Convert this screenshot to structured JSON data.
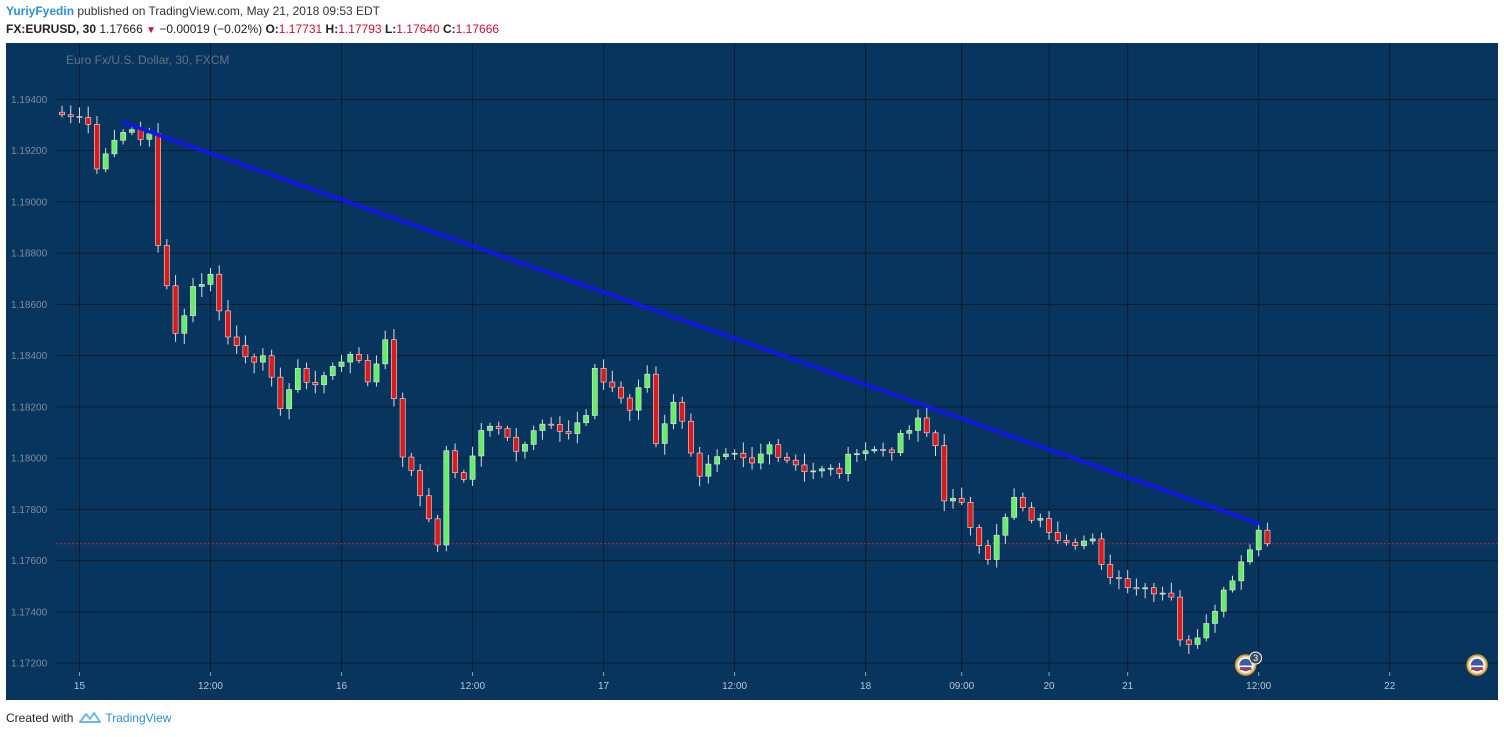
{
  "header": {
    "author": "YuriyFyedin",
    "published_text": "published on TradingView.com, May 21, 2018 09:53 EDT",
    "symbol": "FX:EURUSD, 30",
    "last_price": "1.17666",
    "change_icon": "down-triangle-icon",
    "change": "−0.00019 (−0.02%)",
    "open_label": "O:",
    "open": "1.17731",
    "high_label": "H:",
    "high": "1.17793",
    "low_label": "L:",
    "low": "1.17640",
    "close_label": "C:",
    "close": "1.17666"
  },
  "footer": {
    "created_with": "Created with",
    "brand": "TradingView",
    "logo_icon": "tradingview-logo-icon"
  },
  "chart_data": {
    "type": "candlestick",
    "title": "Euro Fx/U.S. Dollar, 30, FXCM",
    "ylim": [
      1.1705,
      1.1962
    ],
    "xlim": [
      0,
      170
    ],
    "y_ticks": [
      "1.19400",
      "1.19200",
      "1.19000",
      "1.18800",
      "1.18600",
      "1.18400",
      "1.18200",
      "1.18000",
      "1.17800",
      "1.17600",
      "1.17400",
      "1.17200"
    ],
    "x_ticks": [
      {
        "label": "15",
        "x": 2
      },
      {
        "label": "12:00",
        "x": 17
      },
      {
        "label": "16",
        "x": 32
      },
      {
        "label": "12:00",
        "x": 47
      },
      {
        "label": "17",
        "x": 62
      },
      {
        "label": "12:00",
        "x": 77
      },
      {
        "label": "18",
        "x": 92
      },
      {
        "label": "09:00",
        "x": 103
      },
      {
        "label": "20",
        "x": 113
      },
      {
        "label": "21",
        "x": 122
      },
      {
        "label": "12:00",
        "x": 137
      },
      {
        "label": "22",
        "x": 152
      }
    ],
    "price_line": 1.17666,
    "trendline": {
      "x1": 7,
      "y1": 1.1931,
      "x2": 137,
      "y2": 1.17745
    },
    "anchors": [
      [
        0,
        1.1934
      ],
      [
        3,
        1.1932
      ],
      [
        4,
        1.1914
      ],
      [
        7,
        1.1929
      ],
      [
        9,
        1.1924
      ],
      [
        10,
        1.1927
      ],
      [
        11,
        1.1884
      ],
      [
        13,
        1.1848
      ],
      [
        15,
        1.1867
      ],
      [
        17,
        1.1871
      ],
      [
        19,
        1.1847
      ],
      [
        21,
        1.1841
      ],
      [
        23,
        1.1838
      ],
      [
        25,
        1.1821
      ],
      [
        27,
        1.1833
      ],
      [
        29,
        1.1829
      ],
      [
        31,
        1.1835
      ],
      [
        33,
        1.1842
      ],
      [
        35,
        1.183
      ],
      [
        37,
        1.1846
      ],
      [
        39,
        1.1802
      ],
      [
        41,
        1.1786
      ],
      [
        43,
        1.1768
      ],
      [
        44,
        1.1801
      ],
      [
        46,
        1.179
      ],
      [
        48,
        1.1812
      ],
      [
        50,
        1.1812
      ],
      [
        52,
        1.1802
      ],
      [
        54,
        1.1812
      ],
      [
        56,
        1.1815
      ],
      [
        58,
        1.181
      ],
      [
        60,
        1.1816
      ],
      [
        61,
        1.1833
      ],
      [
        63,
        1.1828
      ],
      [
        65,
        1.1819
      ],
      [
        67,
        1.1833
      ],
      [
        68,
        1.1806
      ],
      [
        70,
        1.1823
      ],
      [
        73,
        1.1794
      ],
      [
        75,
        1.1799
      ],
      [
        77,
        1.18
      ],
      [
        79,
        1.1797
      ],
      [
        81,
        1.1805
      ],
      [
        83,
        1.18
      ],
      [
        85,
        1.1796
      ],
      [
        87,
        1.1795
      ],
      [
        89,
        1.1795
      ],
      [
        91,
        1.1804
      ],
      [
        93,
        1.1803
      ],
      [
        95,
        1.1804
      ],
      [
        97,
        1.1811
      ],
      [
        98,
        1.1814
      ],
      [
        100,
        1.1805
      ],
      [
        101,
        1.1785
      ],
      [
        103,
        1.1781
      ],
      [
        104,
        1.1774
      ],
      [
        106,
        1.1762
      ],
      [
        108,
        1.1776
      ],
      [
        109,
        1.1784
      ],
      [
        110,
        1.1779
      ],
      [
        112,
        1.1775
      ],
      [
        114,
        1.177
      ],
      [
        116,
        1.1768
      ],
      [
        118,
        1.1767
      ],
      [
        119,
        1.1757
      ],
      [
        121,
        1.1753
      ],
      [
        123,
        1.175
      ],
      [
        125,
        1.1749
      ],
      [
        127,
        1.1747
      ],
      [
        128,
        1.173
      ],
      [
        129,
        1.1726
      ],
      [
        131,
        1.1737
      ],
      [
        133,
        1.1748
      ],
      [
        135,
        1.176
      ],
      [
        137,
        1.1772
      ],
      [
        138,
        1.17666
      ]
    ],
    "events": [
      {
        "label": "3",
        "x": 135.5
      },
      {
        "label": "",
        "x": 162
      }
    ],
    "colors": {
      "background": "#07355e",
      "grid": "#0d1c2e",
      "up": "#66ee66",
      "down": "#dd1a1a",
      "wick": "#d8dde6",
      "trendline": "#1414f0",
      "price_line": "#cc2222",
      "axis_panel": "#07355e"
    }
  }
}
